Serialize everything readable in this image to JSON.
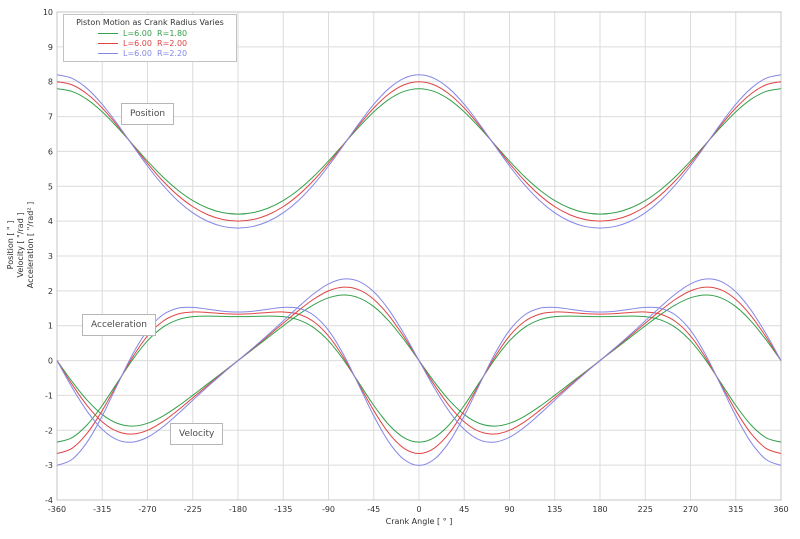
{
  "chart_data": {
    "type": "line",
    "title": "Piston Motion as Crank Radius Varies",
    "xlabel": "Crank Angle  [ ° ]",
    "ylabel_lines": [
      "Position  [ \" ]",
      "Velocity  [ \"/rad ]",
      "Acceleration  [ \"/rad² ]"
    ],
    "xlim": [
      -360,
      360
    ],
    "ylim": [
      -4,
      10
    ],
    "x_ticks": [
      -360,
      -315,
      -270,
      -225,
      -180,
      -135,
      -90,
      -45,
      0,
      45,
      90,
      135,
      180,
      225,
      270,
      315,
      360
    ],
    "y_ticks": [
      10,
      9,
      8,
      7,
      6,
      5,
      4,
      3,
      2,
      1,
      0,
      -1,
      -2,
      -3,
      -4
    ],
    "grid": true,
    "legend_position": "top-left",
    "periodic_note": "curves are periodic in 360°; sampled one period below, drawn over -360..360",
    "theta_deg": [
      0,
      15,
      30,
      45,
      60,
      75,
      90,
      105,
      120,
      135,
      150,
      165,
      180,
      195,
      210,
      225,
      240,
      255,
      270,
      285,
      300,
      315,
      330,
      345,
      360
    ],
    "annotations": {
      "position": "Position",
      "acceleration": "Acceleration",
      "velocity": "Velocity"
    },
    "series": [
      {
        "label": "L=6.00  R=1.80",
        "color": "#33a04a",
        "L": 6.0,
        "R": 1.8,
        "position": [
          7.8,
          7.7206,
          7.491,
          7.1362,
          6.694,
          6.2084,
          5.7236,
          5.2767,
          4.894,
          4.5907,
          4.3733,
          4.2432,
          4.2,
          4.2432,
          4.3733,
          4.5907,
          4.894,
          5.2767,
          5.7236,
          6.2084,
          6.694,
          7.1362,
          7.491,
          7.7206,
          7.8
        ],
        "velocity": [
          0,
          -0.6013,
          -1.1365,
          -1.5491,
          -1.801,
          -1.8797,
          -1.8,
          -1.5976,
          -1.3167,
          -0.9965,
          -0.6635,
          -0.3305,
          0,
          0.3305,
          0.6635,
          0.9965,
          1.3167,
          1.5976,
          1.8,
          1.8797,
          1.801,
          1.5491,
          1.1365,
          0.6013,
          0
        ],
        "acceleration": [
          -2.34,
          -2.2108,
          -1.8414,
          -1.2858,
          -0.6305,
          0.0193,
          0.5661,
          0.951,
          1.1695,
          1.2598,
          1.2763,
          1.2665,
          1.26,
          1.2665,
          1.2763,
          1.2598,
          1.1695,
          0.951,
          0.5661,
          0.0193,
          -0.6305,
          -1.2858,
          -1.8414,
          -2.2108,
          -2.34
        ]
      },
      {
        "label": "L=6.00  R=2.00",
        "color": "#e04545",
        "L": 6.0,
        "R": 2.0,
        "position": [
          8,
          7.9095,
          7.6482,
          7.2452,
          6.7446,
          6.1981,
          5.6569,
          5.1629,
          4.7446,
          4.4168,
          4.184,
          4.0457,
          4,
          4.0457,
          4.184,
          4.4168,
          4.7446,
          5.1629,
          5.6569,
          6.1981,
          6.7446,
          7.2452,
          7.6482,
          7.9095,
          8
        ],
        "velocity": [
          0,
          -0.6849,
          -1.2928,
          -1.7572,
          -2.0336,
          -2.1079,
          -2,
          -1.7559,
          -1.4306,
          -1.0712,
          -0.7072,
          -0.3503,
          0,
          0.3503,
          0.7072,
          1.0712,
          1.4306,
          1.7559,
          2,
          2.1079,
          2.0336,
          1.7572,
          1.2928,
          0.6849,
          0
        ],
        "acceleration": [
          -2.6667,
          -2.5161,
          -2.0846,
          -1.4344,
          -0.6677,
          0.0867,
          0.7071,
          1.1219,
          1.3323,
          1.394,
          1.3795,
          1.3477,
          1.3333,
          1.3477,
          1.3795,
          1.394,
          1.3323,
          1.1219,
          0.7071,
          0.0867,
          -0.6677,
          -1.4344,
          -2.0846,
          -2.5161,
          -2.6667
        ]
      },
      {
        "label": "L=6.00  R=2.20",
        "color": "#8487e6",
        "L": 6.0,
        "R": 2.2,
        "position": [
          8.2,
          8.098,
          7.8036,
          7.3505,
          6.7895,
          6.1805,
          5.5821,
          5.0417,
          4.5895,
          4.2392,
          3.993,
          3.8479,
          3.8,
          3.8479,
          3.993,
          4.2392,
          4.5895,
          5.0417,
          5.5821,
          6.1805,
          6.7895,
          7.3505,
          7.8036,
          8.098,
          8.2
        ],
        "velocity": [
          0,
          -0.772,
          -1.4553,
          -1.9732,
          -2.2736,
          -2.3407,
          -2.2,
          -1.9094,
          -1.5369,
          -1.138,
          -0.7447,
          -0.3668,
          0,
          0.3668,
          0.7447,
          1.138,
          1.5369,
          1.9094,
          2.2,
          2.3407,
          2.2736,
          1.9732,
          1.4553,
          0.772,
          0
        ],
        "acceleration": [
          -3.0067,
          -2.8337,
          -2.337,
          -1.5857,
          -0.6985,
          0.1693,
          0.8671,
          1.3081,
          1.5015,
          1.5255,
          1.4736,
          1.4164,
          1.3933,
          1.4164,
          1.4736,
          1.5255,
          1.5015,
          1.3081,
          0.8671,
          0.1693,
          -0.6985,
          -1.5857,
          -2.337,
          -2.8337,
          -3.0067
        ]
      }
    ],
    "colors": {
      "grid": "#dcdcdc",
      "border": "#c4c4c4",
      "tick_text": "#303030"
    }
  }
}
